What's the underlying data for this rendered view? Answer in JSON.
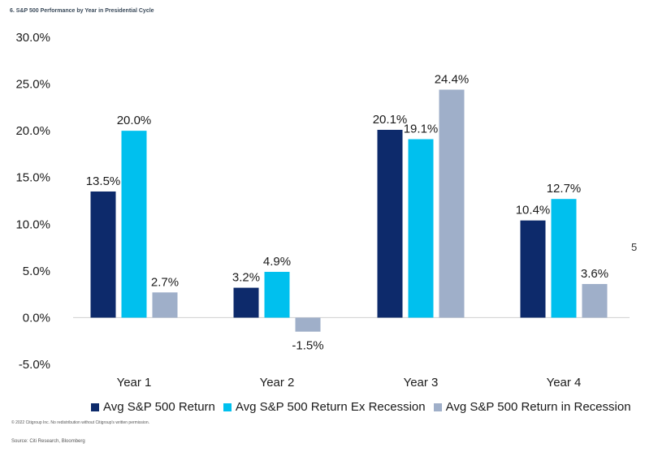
{
  "chart_data": {
    "type": "bar",
    "title": "6. S&P 500 Performance by Year in Presidential Cycle",
    "categories": [
      "Year 1",
      "Year 2",
      "Year 3",
      "Year 4"
    ],
    "series": [
      {
        "name": "Avg S&P 500 Return",
        "color": "#0d2a6b",
        "values": [
          13.5,
          3.2,
          20.1,
          10.4
        ],
        "labels": [
          "13.5%",
          "3.2%",
          "20.1%",
          "10.4%"
        ]
      },
      {
        "name": "Avg S&P 500 Return Ex Recession",
        "color": "#00c0ee",
        "values": [
          20.0,
          4.9,
          19.1,
          12.7
        ],
        "labels": [
          "20.0%",
          "4.9%",
          "19.1%",
          "12.7%"
        ]
      },
      {
        "name": "Avg S&P 500 Return in Recession",
        "color": "#9fafc9",
        "values": [
          2.7,
          -1.5,
          24.4,
          3.6
        ],
        "labels": [
          "2.7%",
          "-1.5%",
          "24.4%",
          "3.6%"
        ]
      }
    ],
    "ylim": [
      -5,
      30
    ],
    "yticks": [
      30,
      25,
      20,
      15,
      10,
      5,
      0,
      -5
    ],
    "ytick_labels": [
      "30.0%",
      "25.0%",
      "20.0%",
      "15.0%",
      "10.0%",
      "5.0%",
      "0.0%",
      "-5.0%"
    ],
    "xlabel": "",
    "ylabel": "",
    "grid": false,
    "legend_position": "bottom"
  },
  "footer": {
    "copyright": "© 2022 Citigroup Inc. No redistribution without Citigroup's written permission.",
    "source": "Source: Citi Research, Bloomberg"
  },
  "stray_mark": "5"
}
